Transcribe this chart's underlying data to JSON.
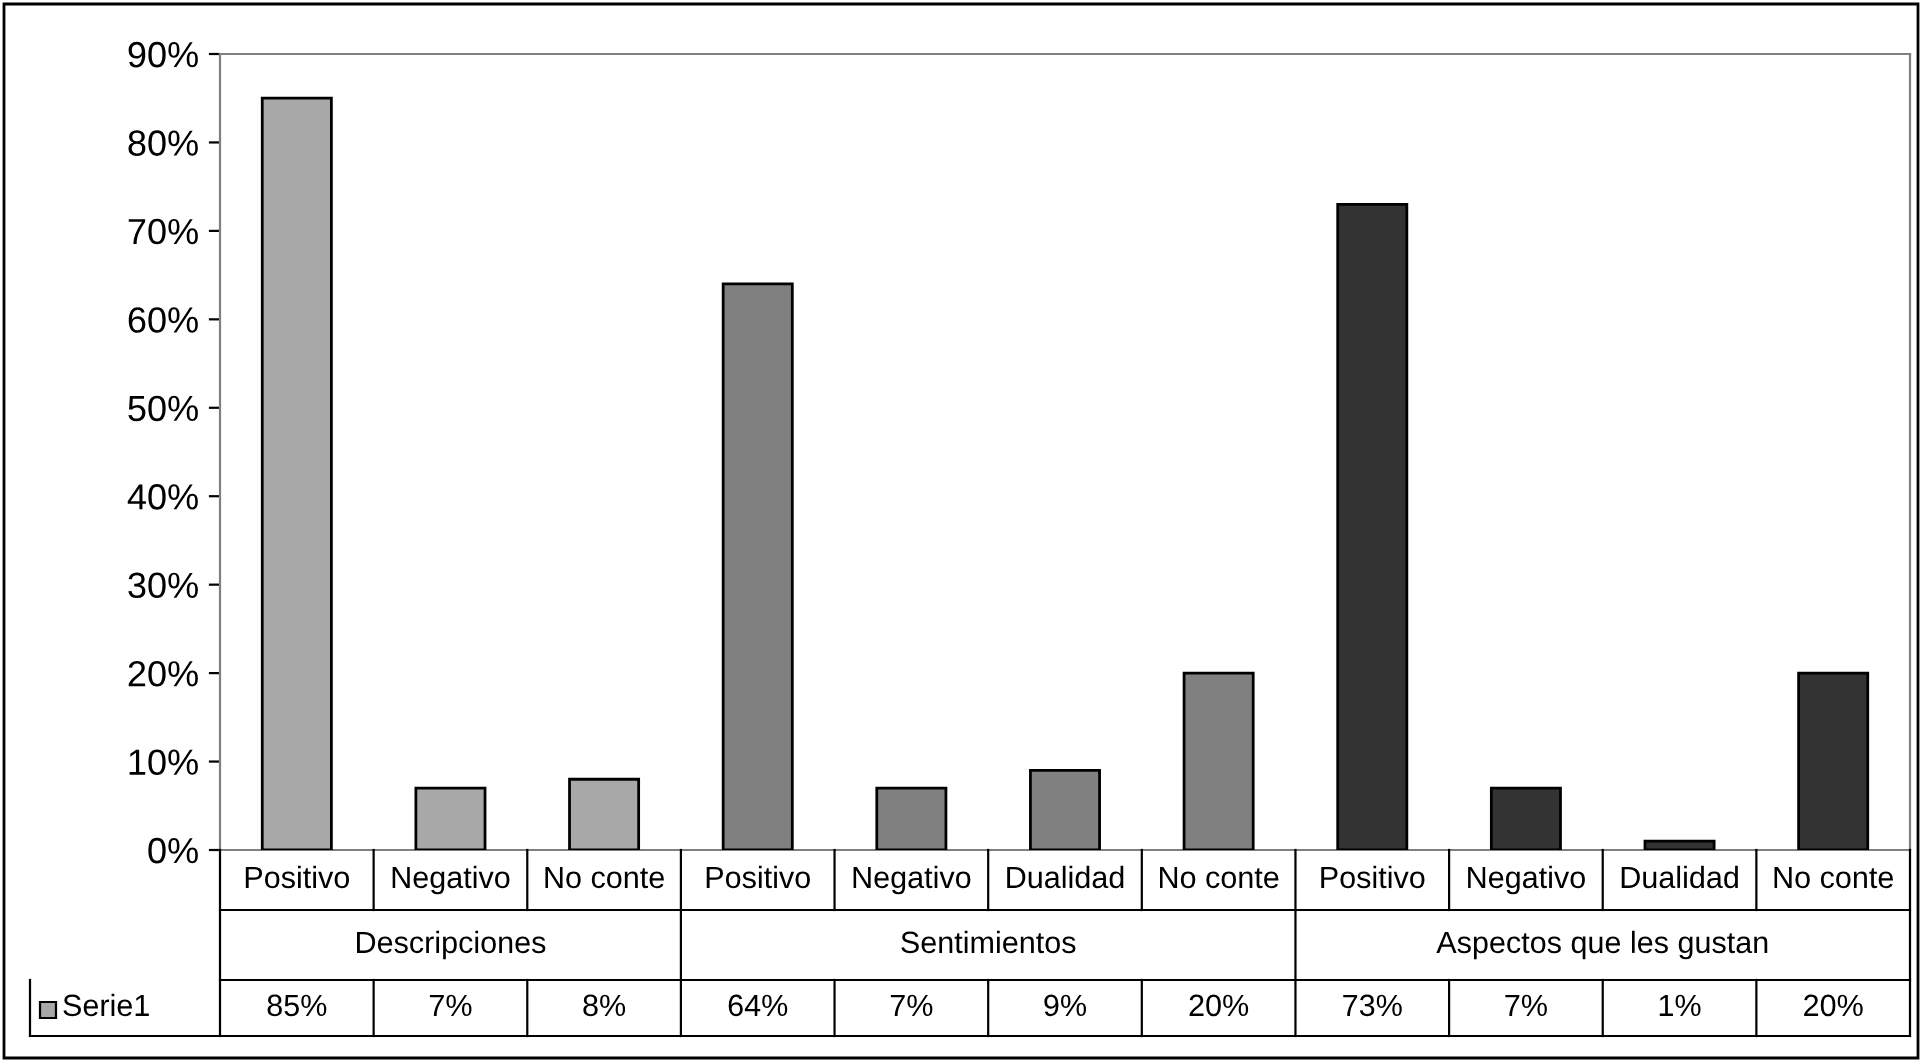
{
  "chart_data": {
    "type": "bar",
    "categories": [
      "Positivo",
      "Negativo",
      "No conte",
      "Positivo",
      "Negativo",
      "Dualidad",
      "No conte",
      "Positivo",
      "Negativo",
      "Dualidad",
      "No conte"
    ],
    "series": [
      {
        "name": "Serie1",
        "colors": [
          "#a8a8a8",
          "#a8a8a8",
          "#a8a8a8",
          "#808080",
          "#808080",
          "#808080",
          "#808080",
          "#333333",
          "#333333",
          "#333333",
          "#333333"
        ],
        "values": [
          85,
          7,
          8,
          64,
          7,
          9,
          20,
          73,
          7,
          1,
          20
        ],
        "value_labels": [
          "85%",
          "7%",
          "8%",
          "64%",
          "7%",
          "9%",
          "20%",
          "73%",
          "7%",
          "1%",
          "20%"
        ]
      }
    ],
    "annotations": [
      "Descripciones",
      "Sentimientos",
      "Aspectos que les gustan"
    ],
    "ylim": [
      0,
      90
    ],
    "yticks": [
      {
        "value": 0,
        "label": "0%"
      },
      {
        "value": 10,
        "label": "10%"
      },
      {
        "value": 20,
        "label": "20%"
      },
      {
        "value": 30,
        "label": "30%"
      },
      {
        "value": 40,
        "label": "40%"
      },
      {
        "value": 50,
        "label": "50%"
      },
      {
        "value": 60,
        "label": "60%"
      },
      {
        "value": 70,
        "label": "70%"
      },
      {
        "value": 80,
        "label": "80%"
      },
      {
        "value": 90,
        "label": "90%"
      }
    ],
    "grid": false,
    "legend": "bottom left"
  }
}
